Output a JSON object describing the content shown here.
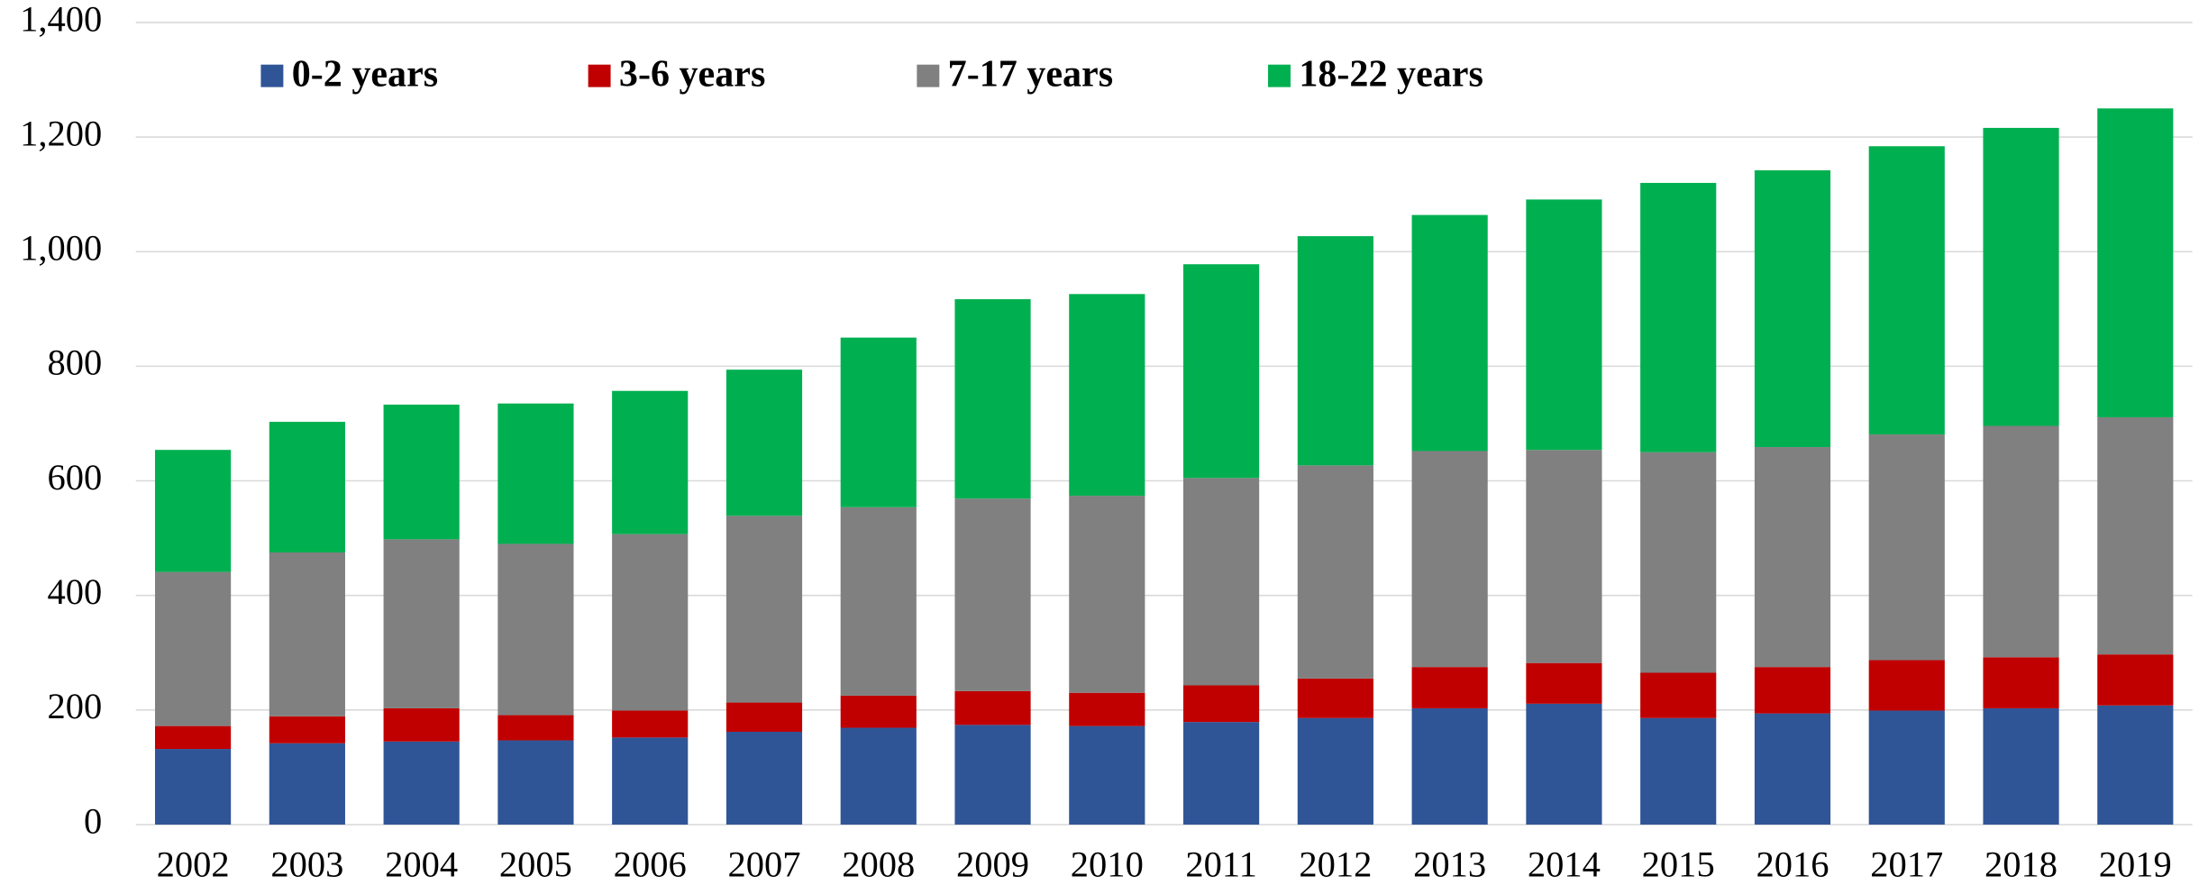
{
  "chart_data": {
    "type": "stacked_bar",
    "categories": [
      "2002",
      "2003",
      "2004",
      "2005",
      "2006",
      "2007",
      "2008",
      "2009",
      "2010",
      "2011",
      "2012",
      "2013",
      "2014",
      "2015",
      "2016",
      "2017",
      "2018",
      "2019"
    ],
    "series": [
      {
        "name": "0-2 years",
        "color": "#2f5597",
        "label_color": "#0070c0",
        "values": [
          132,
          142,
          145,
          147,
          152,
          162,
          169,
          174,
          172,
          179,
          186,
          203,
          211,
          186,
          194,
          199,
          203,
          208
        ]
      },
      {
        "name": "3-6 years",
        "color": "#c00000",
        "label_color": "#c00000",
        "values": [
          40,
          47,
          58,
          44,
          47,
          51,
          56,
          59,
          58,
          64,
          69,
          72,
          71,
          79,
          81,
          88,
          89,
          89
        ]
      },
      {
        "name": "7-17 years",
        "color": "#808080",
        "label_color": "#808080",
        "values": [
          269,
          286,
          295,
          299,
          308,
          326,
          329,
          336,
          344,
          362,
          372,
          377,
          372,
          385,
          384,
          394,
          404,
          414
        ]
      },
      {
        "name": "18-22 years",
        "color": "#00b050",
        "label_color": "#00b050",
        "values": [
          213,
          228,
          235,
          245,
          250,
          255,
          296,
          348,
          352,
          373,
          400,
          412,
          437,
          470,
          483,
          503,
          520,
          539
        ]
      }
    ],
    "ylim": [
      0,
      1400
    ],
    "yticks": [
      0,
      200,
      400,
      600,
      800,
      {
        "value": 1000,
        "label": "1,000"
      },
      {
        "value": 1200,
        "label": "1,200"
      },
      {
        "value": 1400,
        "label": "1,400"
      }
    ],
    "grid": true,
    "legend": "top"
  }
}
